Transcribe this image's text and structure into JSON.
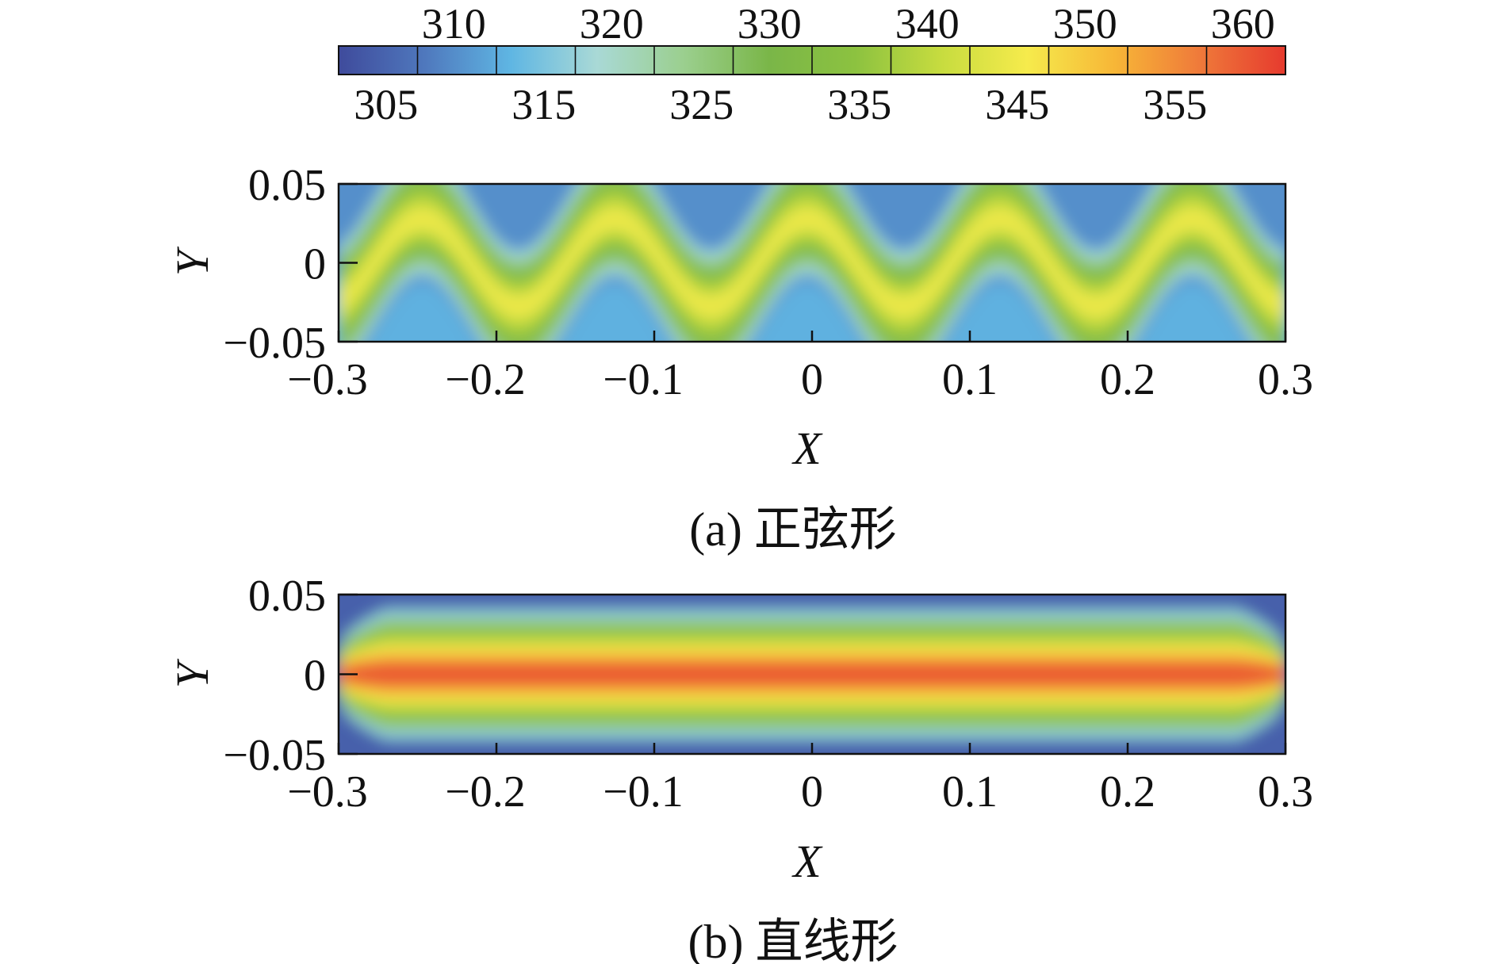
{
  "colors": {
    "colormap": [
      "#3f4b9c",
      "#4f78bd",
      "#5fb6e3",
      "#a9d9d6",
      "#9bcf8f",
      "#7ab648",
      "#8cc240",
      "#c7dc3f",
      "#f6eb4c",
      "#f7b737",
      "#ef7a3a",
      "#e63a2e"
    ]
  },
  "chart_data": [
    {
      "type": "heatmap",
      "colorbar": {
        "min": 302.5,
        "max": 362.5,
        "levels": [
          302.5,
          307.5,
          312.5,
          317.5,
          322.5,
          327.5,
          332.5,
          337.5,
          342.5,
          347.5,
          352.5,
          357.5,
          362.5
        ],
        "top_ticks": [
          "310",
          "320",
          "330",
          "340",
          "350",
          "360"
        ],
        "top_tick_values": [
          310,
          320,
          330,
          340,
          350,
          360
        ],
        "bottom_ticks": [
          "305",
          "315",
          "325",
          "335",
          "345",
          "355"
        ],
        "bottom_tick_values": [
          305,
          315,
          325,
          335,
          345,
          355
        ]
      }
    },
    {
      "type": "heatmap",
      "caption": "(a) 正弦形",
      "xlabel": "X",
      "ylabel": "Y",
      "xlim": [
        -0.3,
        0.3
      ],
      "ylim": [
        -0.05,
        0.05
      ],
      "x_ticks": [
        "−0.3",
        "−0.2",
        "−0.1",
        "0",
        "0.1",
        "0.2",
        "0.3"
      ],
      "x_tick_values": [
        -0.3,
        -0.2,
        -0.1,
        0,
        0.1,
        0.2,
        0.3
      ],
      "y_ticks": [
        "0.05",
        "0",
        "−0.05"
      ],
      "y_tick_values": [
        0.05,
        0,
        -0.05
      ],
      "channel_shape": "sine",
      "sine_amplitude": 0.033,
      "sine_period": 0.122,
      "sine_peaks_x": [
        -0.247,
        -0.125,
        -0.003,
        0.119,
        0.241
      ],
      "core_temperature": 345,
      "wall_temperature": 310
    },
    {
      "type": "heatmap",
      "caption": "(b) 直线形",
      "xlabel": "X",
      "ylabel": "Y",
      "xlim": [
        -0.3,
        0.3
      ],
      "ylim": [
        -0.05,
        0.05
      ],
      "x_ticks": [
        "−0.3",
        "−0.2",
        "−0.1",
        "0",
        "0.1",
        "0.2",
        "0.3"
      ],
      "x_tick_values": [
        -0.3,
        -0.2,
        -0.1,
        0,
        0.1,
        0.2,
        0.3
      ],
      "y_ticks": [
        "0.05",
        "0",
        "−0.05"
      ],
      "y_tick_values": [
        0.05,
        0,
        -0.05
      ],
      "channel_shape": "straight",
      "core_temperature": 360,
      "wall_temperature": 305
    }
  ]
}
